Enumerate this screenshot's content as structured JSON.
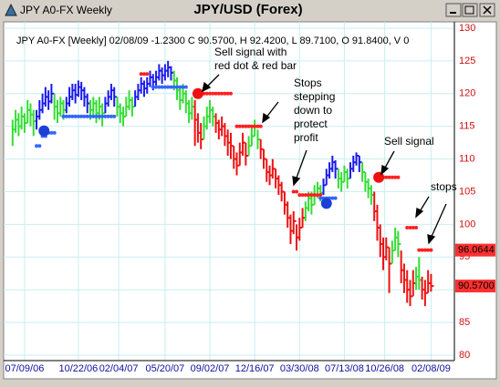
{
  "chart_data": {
    "type": "ohlc",
    "window_title": "JPY A0-FX Weekly",
    "title": "JPY/USD (Forex)",
    "header": "JPY A0-FX [Weekly] 02/08/09 -1.2300 C 90.5700, H 92.4200, L 89.7100, O 91.8400, V 0",
    "ylim": [
      80,
      130
    ],
    "yticks": [
      80,
      85,
      90,
      95,
      100,
      105,
      110,
      115,
      120,
      125,
      130
    ],
    "xlim": [
      -3,
      147.5
    ],
    "xticks": [
      {
        "value": 4,
        "label": "07/09/06"
      },
      {
        "value": 22,
        "label": "10/22/06"
      },
      {
        "value": 35.5,
        "label": "02/04/07"
      },
      {
        "value": 51,
        "label": "05/20/07"
      },
      {
        "value": 66,
        "label": "09/02/07"
      },
      {
        "value": 81,
        "label": "12/16/07"
      },
      {
        "value": 96,
        "label": "03/30/08"
      },
      {
        "value": 111,
        "label": "07/13/08"
      },
      {
        "value": 124.5,
        "label": "10/26/08"
      },
      {
        "value": 140,
        "label": "02/08/09"
      }
    ],
    "grid": true,
    "runs": [
      {
        "color": "#33dd33",
        "high": [
          116,
          117.5,
          117,
          118,
          117,
          119,
          118.5,
          117.5
        ],
        "low": [
          112,
          114,
          113.5,
          114.5,
          114,
          115.5,
          115,
          113.5
        ],
        "close": [
          114.5,
          116,
          115,
          116.5,
          115.5,
          117.5,
          116.8,
          115.8
        ]
      },
      {
        "color": "#1a1aee",
        "high": [
          117.5,
          119,
          120,
          121,
          120.5,
          121.5
        ],
        "low": [
          114.5,
          116,
          117,
          118,
          117.5,
          118.5
        ],
        "close": [
          116.5,
          117.5,
          118.5,
          119.5,
          118.8,
          120
        ]
      },
      {
        "color": "#33dd33",
        "high": [
          120,
          119,
          119.5,
          119
        ],
        "low": [
          116,
          115.5,
          116.5,
          116
        ],
        "close": [
          118,
          117,
          118.5,
          117.5
        ]
      },
      {
        "color": "#1a1aee",
        "high": [
          119.5,
          121,
          121.5,
          121.5,
          122,
          121.8,
          121,
          120
        ],
        "low": [
          117,
          118,
          119,
          118.5,
          119.5,
          119,
          118,
          117
        ],
        "close": [
          118.5,
          119.5,
          120.5,
          119.8,
          121,
          120.5,
          119.5,
          118.5
        ]
      },
      {
        "color": "#33dd33",
        "high": [
          119,
          119.5,
          119,
          119.5,
          118.5
        ],
        "low": [
          116,
          116.5,
          115.5,
          116,
          115
        ],
        "close": [
          117.5,
          118.5,
          117,
          118,
          117
        ]
      },
      {
        "color": "#1a1aee",
        "high": [
          119.5,
          120.5,
          121.5,
          121
        ],
        "low": [
          117,
          118,
          119,
          118
        ],
        "close": [
          118.5,
          119.5,
          120.5,
          119.5
        ]
      },
      {
        "color": "#33dd33",
        "high": [
          119.5,
          118.5,
          118,
          119.5,
          120.5,
          119.5
        ],
        "low": [
          116.5,
          115.5,
          115,
          116.5,
          117.5,
          116.5
        ],
        "close": [
          118,
          117,
          116.5,
          118,
          119,
          118
        ]
      },
      {
        "color": "#1a1aee",
        "high": [
          120.5,
          121.5,
          122.5,
          122,
          122.5,
          123.5,
          123
        ],
        "low": [
          118,
          119,
          120,
          119.5,
          120,
          121,
          120.5
        ],
        "close": [
          119.5,
          120.5,
          121.5,
          120.8,
          121.5,
          122.5,
          121.8
        ]
      },
      {
        "color": "#1a1aee",
        "high": [
          123.5,
          124.5,
          124,
          124.5,
          125,
          124.2
        ],
        "low": [
          121,
          122,
          121.5,
          122,
          122.5,
          122
        ],
        "close": [
          122.5,
          123.5,
          122.8,
          123.5,
          124,
          123.2
        ]
      },
      {
        "color": "#33dd33",
        "high": [
          123.5,
          122.5,
          121,
          121.5,
          120.5,
          119,
          119.5
        ],
        "low": [
          120.5,
          119,
          117.5,
          118.5,
          117,
          115.5,
          116
        ],
        "close": [
          122,
          120.5,
          119,
          120,
          118.5,
          117,
          118
        ]
      },
      {
        "color": "#ee1111",
        "high": [
          119,
          117,
          115.5
        ],
        "low": [
          112,
          112.5,
          111.5
        ],
        "close": [
          116,
          114,
          113
        ]
      },
      {
        "color": "#33dd33",
        "high": [
          116.5,
          118,
          119,
          118
        ],
        "low": [
          113,
          114.5,
          115.5,
          115
        ],
        "close": [
          115,
          116.5,
          117.5,
          116.5
        ]
      },
      {
        "color": "#ee1111",
        "high": [
          117,
          116,
          116.5,
          115.5,
          114.5
        ],
        "low": [
          114,
          113,
          113.5,
          112,
          110.5
        ],
        "close": [
          115.5,
          114.5,
          115,
          113.5,
          112.5
        ]
      },
      {
        "color": "#ee1111",
        "high": [
          114,
          112,
          111,
          112.5,
          114,
          112.5
        ],
        "low": [
          110,
          108.5,
          107.5,
          109,
          110.5,
          109
        ],
        "close": [
          112,
          110,
          109,
          111,
          112.5,
          110.5
        ]
      },
      {
        "color": "#33dd33",
        "high": [
          113.5,
          115,
          116,
          114.5
        ],
        "low": [
          110.5,
          112,
          113.5,
          111.5
        ],
        "close": [
          112,
          113.5,
          115,
          113
        ]
      },
      {
        "color": "#ee1111",
        "high": [
          113,
          111.5,
          110,
          109,
          110,
          108.5,
          107.5,
          106.5
        ],
        "low": [
          110,
          108.5,
          106.5,
          106,
          107,
          105.5,
          104.5,
          103.5
        ],
        "close": [
          111.5,
          110,
          108,
          107.5,
          108.5,
          107,
          106,
          105
        ]
      },
      {
        "color": "#ee1111",
        "high": [
          105,
          103.5,
          101.5,
          102,
          100,
          101,
          102.5
        ],
        "low": [
          101.5,
          99.5,
          97,
          98.5,
          96,
          97.5,
          99.5
        ],
        "close": [
          103,
          101,
          99,
          100.5,
          98,
          99.5,
          101
        ]
      },
      {
        "color": "#33dd33",
        "high": [
          103.5,
          105,
          105,
          106,
          106.5,
          106
        ],
        "low": [
          100.5,
          102,
          101.5,
          103,
          104,
          103.5
        ],
        "close": [
          102.5,
          104,
          103,
          104.5,
          105.5,
          104.8
        ]
      },
      {
        "color": "#1a1aee",
        "high": [
          107,
          108.5,
          109.5,
          110.5,
          109.8
        ],
        "low": [
          104.5,
          106,
          107,
          108,
          107
        ],
        "close": [
          106,
          107.5,
          108.5,
          109.5,
          108.5
        ]
      },
      {
        "color": "#33dd33",
        "high": [
          108.5,
          108,
          109,
          108.5
        ],
        "low": [
          105.5,
          105,
          106.5,
          105.5
        ],
        "close": [
          107,
          106.5,
          108,
          107
        ]
      },
      {
        "color": "#1a1aee",
        "high": [
          109.5,
          110.5,
          111,
          110.5
        ],
        "low": [
          107,
          108,
          109,
          108
        ],
        "close": [
          108.5,
          109.5,
          110.5,
          109.5
        ]
      },
      {
        "color": "#33dd33",
        "high": [
          109.5,
          108,
          107,
          106
        ],
        "low": [
          106.5,
          105,
          104,
          103
        ],
        "close": [
          108,
          106.5,
          105.5,
          104.5
        ]
      },
      {
        "color": "#ee1111",
        "high": [
          105,
          103,
          100,
          98,
          98,
          96.5
        ],
        "low": [
          100.5,
          97.5,
          95,
          93,
          94.5,
          89.5
        ],
        "close": [
          102,
          99.5,
          97,
          95,
          96.5,
          94
        ]
      },
      {
        "color": "#33dd33",
        "high": [
          97.5,
          99.5,
          99
        ],
        "low": [
          94,
          96,
          95
        ],
        "close": [
          96,
          98,
          97
        ]
      },
      {
        "color": "#ee1111",
        "high": [
          96,
          94,
          93,
          91.5,
          93
        ],
        "low": [
          91,
          89.5,
          88,
          87.5,
          89
        ],
        "close": [
          93,
          91.5,
          90,
          89,
          91
        ]
      },
      {
        "color": "#33dd33",
        "high": [
          93.5,
          95
        ],
        "low": [
          90,
          90
        ],
        "close": [
          92,
          91.5
        ]
      },
      {
        "color": "#ee1111",
        "high": [
          92,
          91.5,
          93,
          92.42
        ],
        "low": [
          88.5,
          87.5,
          89.5,
          89.71
        ],
        "close": [
          90,
          89.5,
          91,
          90.57
        ]
      }
    ],
    "stops": [
      {
        "color": "#3366ff",
        "start": 8,
        "values": [
          112,
          112,
          113.5,
          113.5,
          114,
          114,
          114
        ]
      },
      {
        "color": "#3366ff",
        "start": 17,
        "values": [
          116.5,
          116.5,
          116.5,
          116.5,
          116.5,
          116.5,
          116.5,
          116.5,
          116.5,
          116.5,
          116.5,
          116.5,
          116.5,
          116.5,
          116.5,
          116.5,
          116.5,
          116.5
        ]
      },
      {
        "color": "#ff2020",
        "start": 43,
        "values": [
          123,
          123,
          123
        ]
      },
      {
        "color": "#3366ff",
        "start": 47,
        "values": [
          121,
          121,
          121,
          121,
          121,
          121,
          121,
          121,
          121,
          121,
          121,
          121
        ]
      },
      {
        "color": "#ff2020",
        "start": 62,
        "values": [
          120,
          120,
          120,
          120,
          120,
          120,
          120,
          120,
          120,
          120,
          120,
          120
        ]
      },
      {
        "color": "#ff2020",
        "start": 75,
        "values": [
          115,
          115,
          115,
          115,
          115,
          115,
          115,
          115,
          115
        ]
      },
      {
        "color": "#ff2020",
        "start": 94,
        "values": [
          105,
          105,
          104.5,
          104.5,
          104.5,
          104.5,
          104.5,
          104.5,
          104.5,
          104.5
        ]
      },
      {
        "color": "#3366ff",
        "start": 103,
        "values": [
          104,
          104,
          104,
          104,
          104,
          104
        ]
      },
      {
        "color": "#ff2020",
        "start": 122,
        "values": [
          107.2,
          107.2,
          107.2,
          107.2,
          107.2,
          107.2,
          107.2,
          107.2
        ]
      },
      {
        "color": "#ff2020",
        "start": 132,
        "values": [
          99.5,
          99.5,
          99.5,
          99.5
        ]
      },
      {
        "color": "#ff2020",
        "start": 136,
        "values": [
          96.0644,
          96.0644,
          96.0644,
          96.0644,
          96.0644
        ]
      }
    ],
    "signals": [
      {
        "x": 10.5,
        "value": 114.3,
        "color": "#1e3fd6"
      },
      {
        "x": 62,
        "value": 120,
        "color": "#ee1111"
      },
      {
        "x": 105,
        "value": 103.2,
        "color": "#1e3fd6"
      },
      {
        "x": 122.5,
        "value": 107.2,
        "color": "#ee1111"
      }
    ],
    "price_labels": [
      96.0644,
      {
        "value": 90.57,
        "label": "90.5700"
      }
    ],
    "annotations": [
      {
        "lines": [
          "Sell signal with",
          "red dot & red bar"
        ]
      },
      {
        "lines": [
          "Stops",
          "stepping",
          "down to",
          "protect",
          "profit"
        ]
      },
      {
        "lines": [
          "Sell signal"
        ]
      },
      {
        "lines": [
          "stops"
        ]
      }
    ]
  }
}
